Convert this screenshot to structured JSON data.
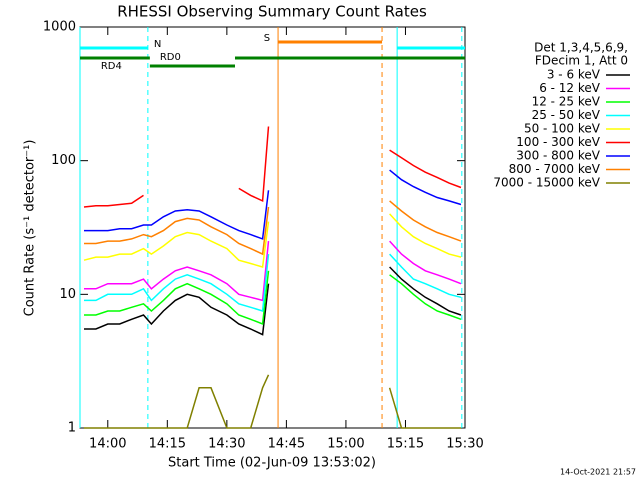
{
  "chart_data": {
    "type": "line",
    "title": "RHESSI Observing Summary Count Rates",
    "x_label": "Start Time (02-Jun-09 13:53:02)",
    "y_label": "Count Rate (s⁻¹ detector⁻¹)",
    "legend_header": [
      "Det 1,3,4,5,6,9,",
      "FDecim 1, Att 0"
    ],
    "footer": "14-Oct-2021 21:57",
    "log_y": true,
    "xlim": [
      -7,
      90
    ],
    "ylim": [
      1,
      1000
    ],
    "xticks": [
      {
        "value": 0,
        "label": "14:00"
      },
      {
        "value": 15,
        "label": "14:15"
      },
      {
        "value": 30,
        "label": "14:30"
      },
      {
        "value": 45,
        "label": "14:45"
      },
      {
        "value": 60,
        "label": "15:00"
      },
      {
        "value": 75,
        "label": "15:15"
      },
      {
        "value": 90,
        "label": "15:30"
      }
    ],
    "yticks": [
      1,
      10,
      100,
      1000
    ],
    "x": [
      -6,
      -3,
      0,
      3,
      6,
      9,
      11,
      14,
      17,
      20,
      23,
      26,
      30,
      33,
      36,
      39,
      40.5,
      55,
      71,
      74,
      77,
      80,
      83,
      86,
      89
    ],
    "series": [
      {
        "name": "3 - 6 keV",
        "color": "#000000",
        "values": [
          5.5,
          5.5,
          6,
          6,
          6.5,
          7,
          6,
          7.5,
          9,
          10,
          9.5,
          8,
          7,
          6,
          5.5,
          5,
          12,
          null,
          16,
          13,
          11,
          9.5,
          8.5,
          7.5,
          7
        ]
      },
      {
        "name": "6 - 12 keV",
        "color": "#ff00ff",
        "values": [
          11,
          11,
          12,
          12,
          12,
          13,
          11,
          13,
          15,
          16,
          15,
          14,
          12,
          10,
          9.5,
          9,
          25,
          null,
          25,
          20,
          17,
          15,
          14,
          13,
          12
        ]
      },
      {
        "name": "12 - 25 keV",
        "color": "#00ff00",
        "values": [
          7,
          7,
          7.5,
          7.5,
          8,
          8.5,
          7.5,
          9,
          11,
          12,
          11,
          10,
          8.5,
          7,
          6.5,
          6,
          15,
          null,
          14,
          12,
          10,
          8.5,
          7.5,
          7,
          6.5
        ]
      },
      {
        "name": "25 - 50 keV",
        "color": "#00ffff",
        "values": [
          9,
          9,
          10,
          10,
          10,
          11,
          9,
          11,
          13,
          14,
          13,
          12,
          10,
          8.5,
          8,
          7.5,
          20,
          null,
          20,
          16,
          13,
          12,
          11,
          10,
          9.5
        ]
      },
      {
        "name": "50 - 100 keV",
        "color": "#ffff00",
        "values": [
          18,
          19,
          19,
          20,
          20,
          22,
          20,
          23,
          27,
          29,
          28,
          25,
          22,
          18,
          17,
          16,
          35,
          null,
          40,
          32,
          27,
          24,
          22,
          20,
          19
        ]
      },
      {
        "name": "100 - 300 keV",
        "color": "#ff0000",
        "values": [
          45,
          46,
          46,
          47,
          48,
          55,
          null,
          null,
          null,
          null,
          null,
          null,
          null,
          62,
          55,
          50,
          180,
          null,
          120,
          105,
          92,
          82,
          75,
          68,
          63
        ]
      },
      {
        "name": "300 - 800 keV",
        "color": "#0000ff",
        "values": [
          30,
          30,
          30,
          31,
          31,
          33,
          33,
          38,
          42,
          43,
          42,
          38,
          33,
          30,
          28,
          26,
          60,
          null,
          85,
          72,
          64,
          58,
          53,
          50,
          47
        ]
      },
      {
        "name": "800 - 7000 keV",
        "color": "#ff8000",
        "values": [
          24,
          24,
          25,
          25,
          26,
          28,
          27,
          30,
          35,
          37,
          36,
          32,
          28,
          24,
          22,
          20,
          45,
          null,
          50,
          42,
          36,
          32,
          29,
          27,
          25
        ]
      },
      {
        "name": "7000 - 15000 keV",
        "color": "#808000",
        "values": [
          1,
          1,
          1,
          1,
          1,
          1,
          1,
          1,
          1,
          1,
          2,
          2,
          1,
          1,
          1,
          2,
          2.5,
          null,
          2,
          1,
          1,
          1,
          1,
          1,
          1
        ]
      }
    ],
    "intervals": [
      {
        "label": "N",
        "start": -7,
        "end": 10.1,
        "color": "#00ffff"
      },
      {
        "start": 72.9,
        "end": 90,
        "color": "#00ffff"
      },
      {
        "label": "S",
        "start": 42.9,
        "end": 69.1,
        "color": "#ff8000"
      },
      {
        "label": "RD4",
        "start": -7,
        "end": 10.6,
        "color": "#008000"
      },
      {
        "label": "RD0",
        "start": 10.6,
        "end": 32.05,
        "color": "#008000"
      },
      {
        "start": 32.05,
        "end": 90,
        "color": "#008000"
      }
    ],
    "markers": [
      {
        "x": -7,
        "color": "#00ffff",
        "dashed": false
      },
      {
        "x": 10.1,
        "color": "#00ffff",
        "dashed": true
      },
      {
        "x": 42.9,
        "color": "#ff8000",
        "dashed": false
      },
      {
        "x": 69.1,
        "color": "#ff8000",
        "dashed": true
      },
      {
        "x": 72.9,
        "color": "#00ffff",
        "dashed": false
      },
      {
        "x": 89.2,
        "color": "#00ffff",
        "dashed": true
      }
    ]
  }
}
